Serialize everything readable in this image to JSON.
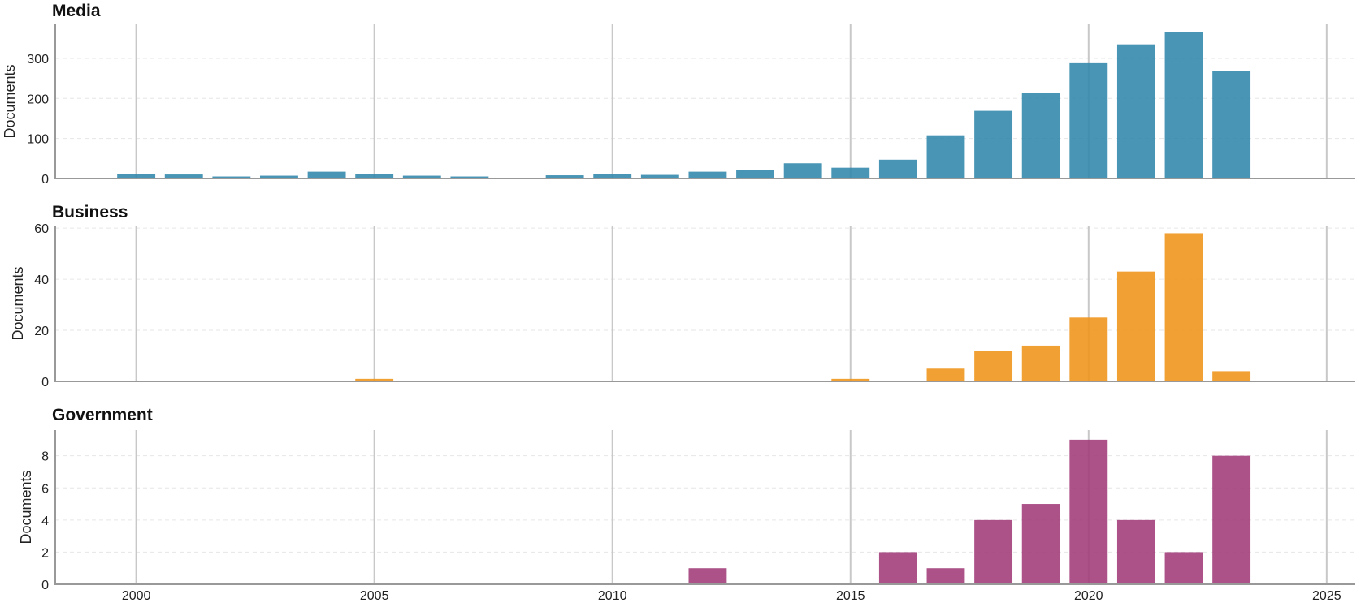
{
  "chart_data": [
    {
      "type": "bar",
      "title": "Media",
      "ylabel": "Documents",
      "color": "#2f86ab",
      "ylim": [
        0,
        385
      ],
      "yticks": [
        0,
        100,
        200,
        300
      ],
      "xlim": [
        1998.3,
        2025.6
      ],
      "xticks": [
        2000,
        2005,
        2010,
        2015,
        2020,
        2025
      ],
      "x": [
        2000,
        2001,
        2002,
        2003,
        2004,
        2005,
        2006,
        2007,
        2009,
        2010,
        2011,
        2012,
        2013,
        2014,
        2015,
        2016,
        2017,
        2018,
        2019,
        2020,
        2021,
        2022,
        2023
      ],
      "values": [
        12,
        10,
        5,
        7,
        17,
        12,
        7,
        5,
        8,
        12,
        9,
        17,
        21,
        38,
        27,
        47,
        108,
        169,
        213,
        288,
        335,
        366,
        269
      ]
    },
    {
      "type": "bar",
      "title": "Business",
      "ylabel": "Documents",
      "color": "#ef9418",
      "ylim": [
        0,
        61
      ],
      "yticks": [
        0,
        20,
        40,
        60
      ],
      "xlim": [
        1998.3,
        2025.6
      ],
      "xticks": [
        2000,
        2005,
        2010,
        2015,
        2020,
        2025
      ],
      "x": [
        2005,
        2015,
        2017,
        2018,
        2019,
        2020,
        2021,
        2022,
        2023
      ],
      "values": [
        1,
        1,
        5,
        12,
        14,
        25,
        43,
        58,
        4
      ]
    },
    {
      "type": "bar",
      "title": "Government",
      "ylabel": "Documents",
      "color": "#a03a77",
      "ylim": [
        0,
        9.6
      ],
      "yticks": [
        0,
        2,
        4,
        6,
        8
      ],
      "xlim": [
        1998.3,
        2025.6
      ],
      "xticks": [
        2000,
        2005,
        2010,
        2015,
        2020,
        2025
      ],
      "x": [
        2012,
        2016,
        2017,
        2018,
        2019,
        2020,
        2021,
        2022,
        2023
      ],
      "values": [
        1,
        2,
        1,
        4,
        5,
        9,
        4,
        2,
        8
      ]
    }
  ]
}
